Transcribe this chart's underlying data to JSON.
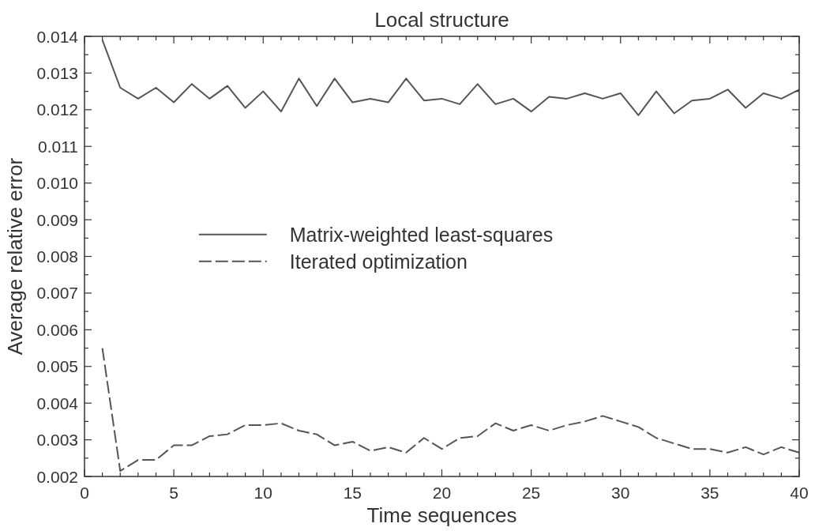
{
  "chart_data": {
    "type": "line",
    "title": "Local structure",
    "xlabel": "Time sequences",
    "ylabel": "Average relative error",
    "x": [
      1,
      2,
      3,
      4,
      5,
      6,
      7,
      8,
      9,
      10,
      11,
      12,
      13,
      14,
      15,
      16,
      17,
      18,
      19,
      20,
      21,
      22,
      23,
      24,
      25,
      26,
      27,
      28,
      29,
      30,
      31,
      32,
      33,
      34,
      35,
      36,
      37,
      38,
      39,
      40
    ],
    "series": [
      {
        "name": "Matrix-weighted least-squares",
        "color": "#555555",
        "line_style": "solid",
        "values": [
          0.0139,
          0.0126,
          0.0123,
          0.0126,
          0.0122,
          0.0127,
          0.0123,
          0.01265,
          0.01205,
          0.0125,
          0.01195,
          0.01285,
          0.0121,
          0.01285,
          0.0122,
          0.0123,
          0.0122,
          0.01285,
          0.01225,
          0.0123,
          0.01215,
          0.0127,
          0.01215,
          0.0123,
          0.01195,
          0.01235,
          0.0123,
          0.01245,
          0.0123,
          0.01245,
          0.01185,
          0.0125,
          0.0119,
          0.01225,
          0.0123,
          0.01255,
          0.01205,
          0.01245,
          0.0123,
          0.01255
        ]
      },
      {
        "name": "Iterated optimization",
        "color": "#555555",
        "line_style": "dashed",
        "values": [
          0.0055,
          0.00215,
          0.00245,
          0.00245,
          0.00285,
          0.00285,
          0.0031,
          0.00315,
          0.0034,
          0.0034,
          0.00345,
          0.00325,
          0.00315,
          0.00285,
          0.00295,
          0.0027,
          0.0028,
          0.00265,
          0.00305,
          0.00275,
          0.00305,
          0.0031,
          0.00345,
          0.00325,
          0.0034,
          0.00325,
          0.0034,
          0.0035,
          0.00365,
          0.0035,
          0.00335,
          0.00305,
          0.0029,
          0.00275,
          0.00275,
          0.00265,
          0.0028,
          0.0026,
          0.0028,
          0.00265
        ]
      }
    ],
    "xlim": [
      0,
      40
    ],
    "ylim": [
      0.002,
      0.014
    ],
    "xticks": [
      0,
      {
        "value": 1,
        "label": null
      },
      {
        "value": 2,
        "label": null
      },
      {
        "value": 3,
        "label": null
      },
      {
        "value": 4,
        "label": null
      },
      5,
      {
        "value": 6,
        "label": null
      },
      {
        "value": 7,
        "label": null
      },
      {
        "value": 8,
        "label": null
      },
      {
        "value": 9,
        "label": null
      },
      10,
      {
        "value": 11,
        "label": null
      },
      {
        "value": 12,
        "label": null
      },
      {
        "value": 13,
        "label": null
      },
      {
        "value": 14,
        "label": null
      },
      15,
      {
        "value": 16,
        "label": null
      },
      {
        "value": 17,
        "label": null
      },
      {
        "value": 18,
        "label": null
      },
      {
        "value": 19,
        "label": null
      },
      20,
      {
        "value": 21,
        "label": null
      },
      {
        "value": 22,
        "label": null
      },
      {
        "value": 23,
        "label": null
      },
      {
        "value": 24,
        "label": null
      },
      25,
      {
        "value": 26,
        "label": null
      },
      {
        "value": 27,
        "label": null
      },
      {
        "value": 28,
        "label": null
      },
      {
        "value": 29,
        "label": null
      },
      30,
      {
        "value": 31,
        "label": null
      },
      {
        "value": 32,
        "label": null
      },
      {
        "value": 33,
        "label": null
      },
      {
        "value": 34,
        "label": null
      },
      35,
      {
        "value": 36,
        "label": null
      },
      {
        "value": 37,
        "label": null
      },
      {
        "value": 38,
        "label": null
      },
      {
        "value": 39,
        "label": null
      },
      40
    ],
    "yticks": [
      0.002,
      {
        "value": 0.0025,
        "label": null
      },
      0.003,
      {
        "value": 0.0035,
        "label": null
      },
      0.004,
      {
        "value": 0.0045,
        "label": null
      },
      0.005,
      {
        "value": 0.0055,
        "label": null
      },
      0.006,
      {
        "value": 0.0065,
        "label": null
      },
      0.007,
      {
        "value": 0.0075,
        "label": null
      },
      0.008,
      {
        "value": 0.0085,
        "label": null
      },
      0.009,
      {
        "value": 0.0095,
        "label": null
      },
      {
        "value": 0.01,
        "label": "0.010"
      },
      {
        "value": 0.0105,
        "label": null
      },
      0.011,
      {
        "value": 0.0115,
        "label": null
      },
      0.012,
      {
        "value": 0.0125,
        "label": null
      },
      0.013,
      {
        "value": 0.0135,
        "label": null
      },
      0.014
    ],
    "legend": "left"
  }
}
